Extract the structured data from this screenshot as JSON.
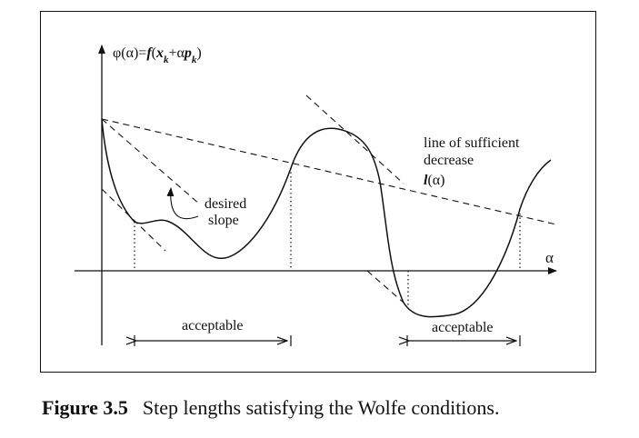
{
  "figure": {
    "y_axis_label": {
      "phi": "φ",
      "open1": "(",
      "alpha1": "α",
      "mid": ")=",
      "f": "f",
      "open2": "(",
      "x": "x",
      "sub_k1": "k",
      "plus": "+",
      "alpha2": "α",
      "p": "p",
      "sub_k2": "k",
      "close": ")"
    },
    "x_axis_label": "α",
    "sufficient_decrease_label": {
      "line1": "line of sufficient",
      "line2": "decrease",
      "symbol_l": "l",
      "symbol_open": "(",
      "symbol_alpha": "α",
      "symbol_close": ")"
    },
    "desired_slope_label": {
      "line1": "desired",
      "line2": "slope"
    },
    "acceptable_intervals": [
      {
        "label": "acceptable"
      },
      {
        "label": "acceptable"
      }
    ]
  },
  "caption": {
    "number": "Figure 3.5",
    "text": "Step lengths satisfying the Wolfe conditions."
  }
}
